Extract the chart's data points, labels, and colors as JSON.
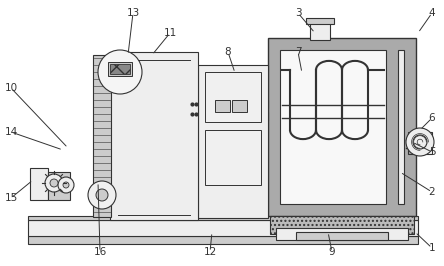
{
  "bg_color": "#ffffff",
  "lc": "#333333",
  "gray_dark": "#999999",
  "gray_med": "#cccccc",
  "gray_light": "#eeeeee",
  "gray_insul": "#aaaaaa",
  "label_specs": [
    [
      "1",
      432,
      248,
      415,
      232
    ],
    [
      "2",
      432,
      192,
      400,
      172
    ],
    [
      "3",
      298,
      13,
      315,
      33
    ],
    [
      "4",
      432,
      13,
      418,
      33
    ],
    [
      "5",
      432,
      152,
      412,
      142
    ],
    [
      "6",
      432,
      118,
      420,
      130
    ],
    [
      "7",
      298,
      52,
      302,
      73
    ],
    [
      "8",
      228,
      52,
      235,
      73
    ],
    [
      "9",
      332,
      252,
      328,
      232
    ],
    [
      "10",
      11,
      88,
      68,
      148
    ],
    [
      "11",
      170,
      33,
      152,
      55
    ],
    [
      "12",
      210,
      252,
      212,
      232
    ],
    [
      "13",
      133,
      13,
      128,
      55
    ],
    [
      "14",
      11,
      132,
      63,
      150
    ],
    [
      "15",
      11,
      198,
      33,
      180
    ],
    [
      "16",
      100,
      252,
      98,
      182
    ]
  ]
}
